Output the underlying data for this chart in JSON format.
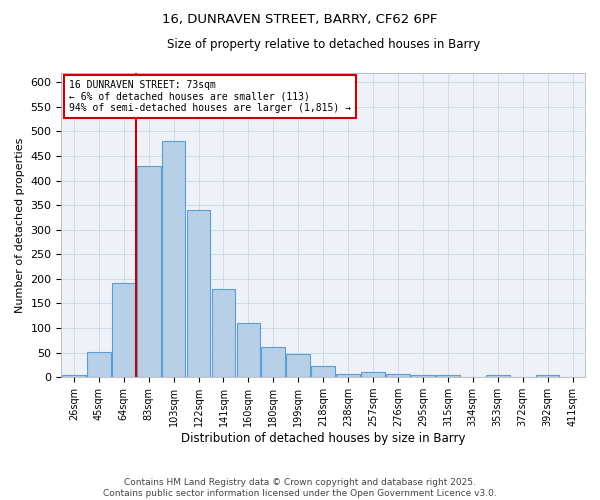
{
  "title1": "16, DUNRAVEN STREET, BARRY, CF62 6PF",
  "title2": "Size of property relative to detached houses in Barry",
  "xlabel": "Distribution of detached houses by size in Barry",
  "ylabel": "Number of detached properties",
  "bins": [
    "26sqm",
    "45sqm",
    "64sqm",
    "83sqm",
    "103sqm",
    "122sqm",
    "141sqm",
    "160sqm",
    "180sqm",
    "199sqm",
    "218sqm",
    "238sqm",
    "257sqm",
    "276sqm",
    "295sqm",
    "315sqm",
    "334sqm",
    "353sqm",
    "372sqm",
    "392sqm",
    "411sqm"
  ],
  "bar_values": [
    5,
    52,
    192,
    430,
    480,
    340,
    180,
    110,
    62,
    48,
    22,
    7,
    10,
    7,
    5,
    4,
    1,
    4,
    1,
    5,
    1
  ],
  "bar_color": "#b8cfe8",
  "bar_edge_color": "#5a9fd4",
  "grid_color": "#c8d8e8",
  "background_color": "#eef2f8",
  "vline_color": "#cc0000",
  "vline_x": 2.5,
  "annotation_title": "16 DUNRAVEN STREET: 73sqm",
  "annotation_line1": "← 6% of detached houses are smaller (113)",
  "annotation_line2": "94% of semi-detached houses are larger (1,815) →",
  "annotation_box_edge": "#cc0000",
  "footer_line1": "Contains HM Land Registry data © Crown copyright and database right 2025.",
  "footer_line2": "Contains public sector information licensed under the Open Government Licence v3.0.",
  "ylim": [
    0,
    620
  ],
  "yticks": [
    0,
    50,
    100,
    150,
    200,
    250,
    300,
    350,
    400,
    450,
    500,
    550,
    600
  ]
}
